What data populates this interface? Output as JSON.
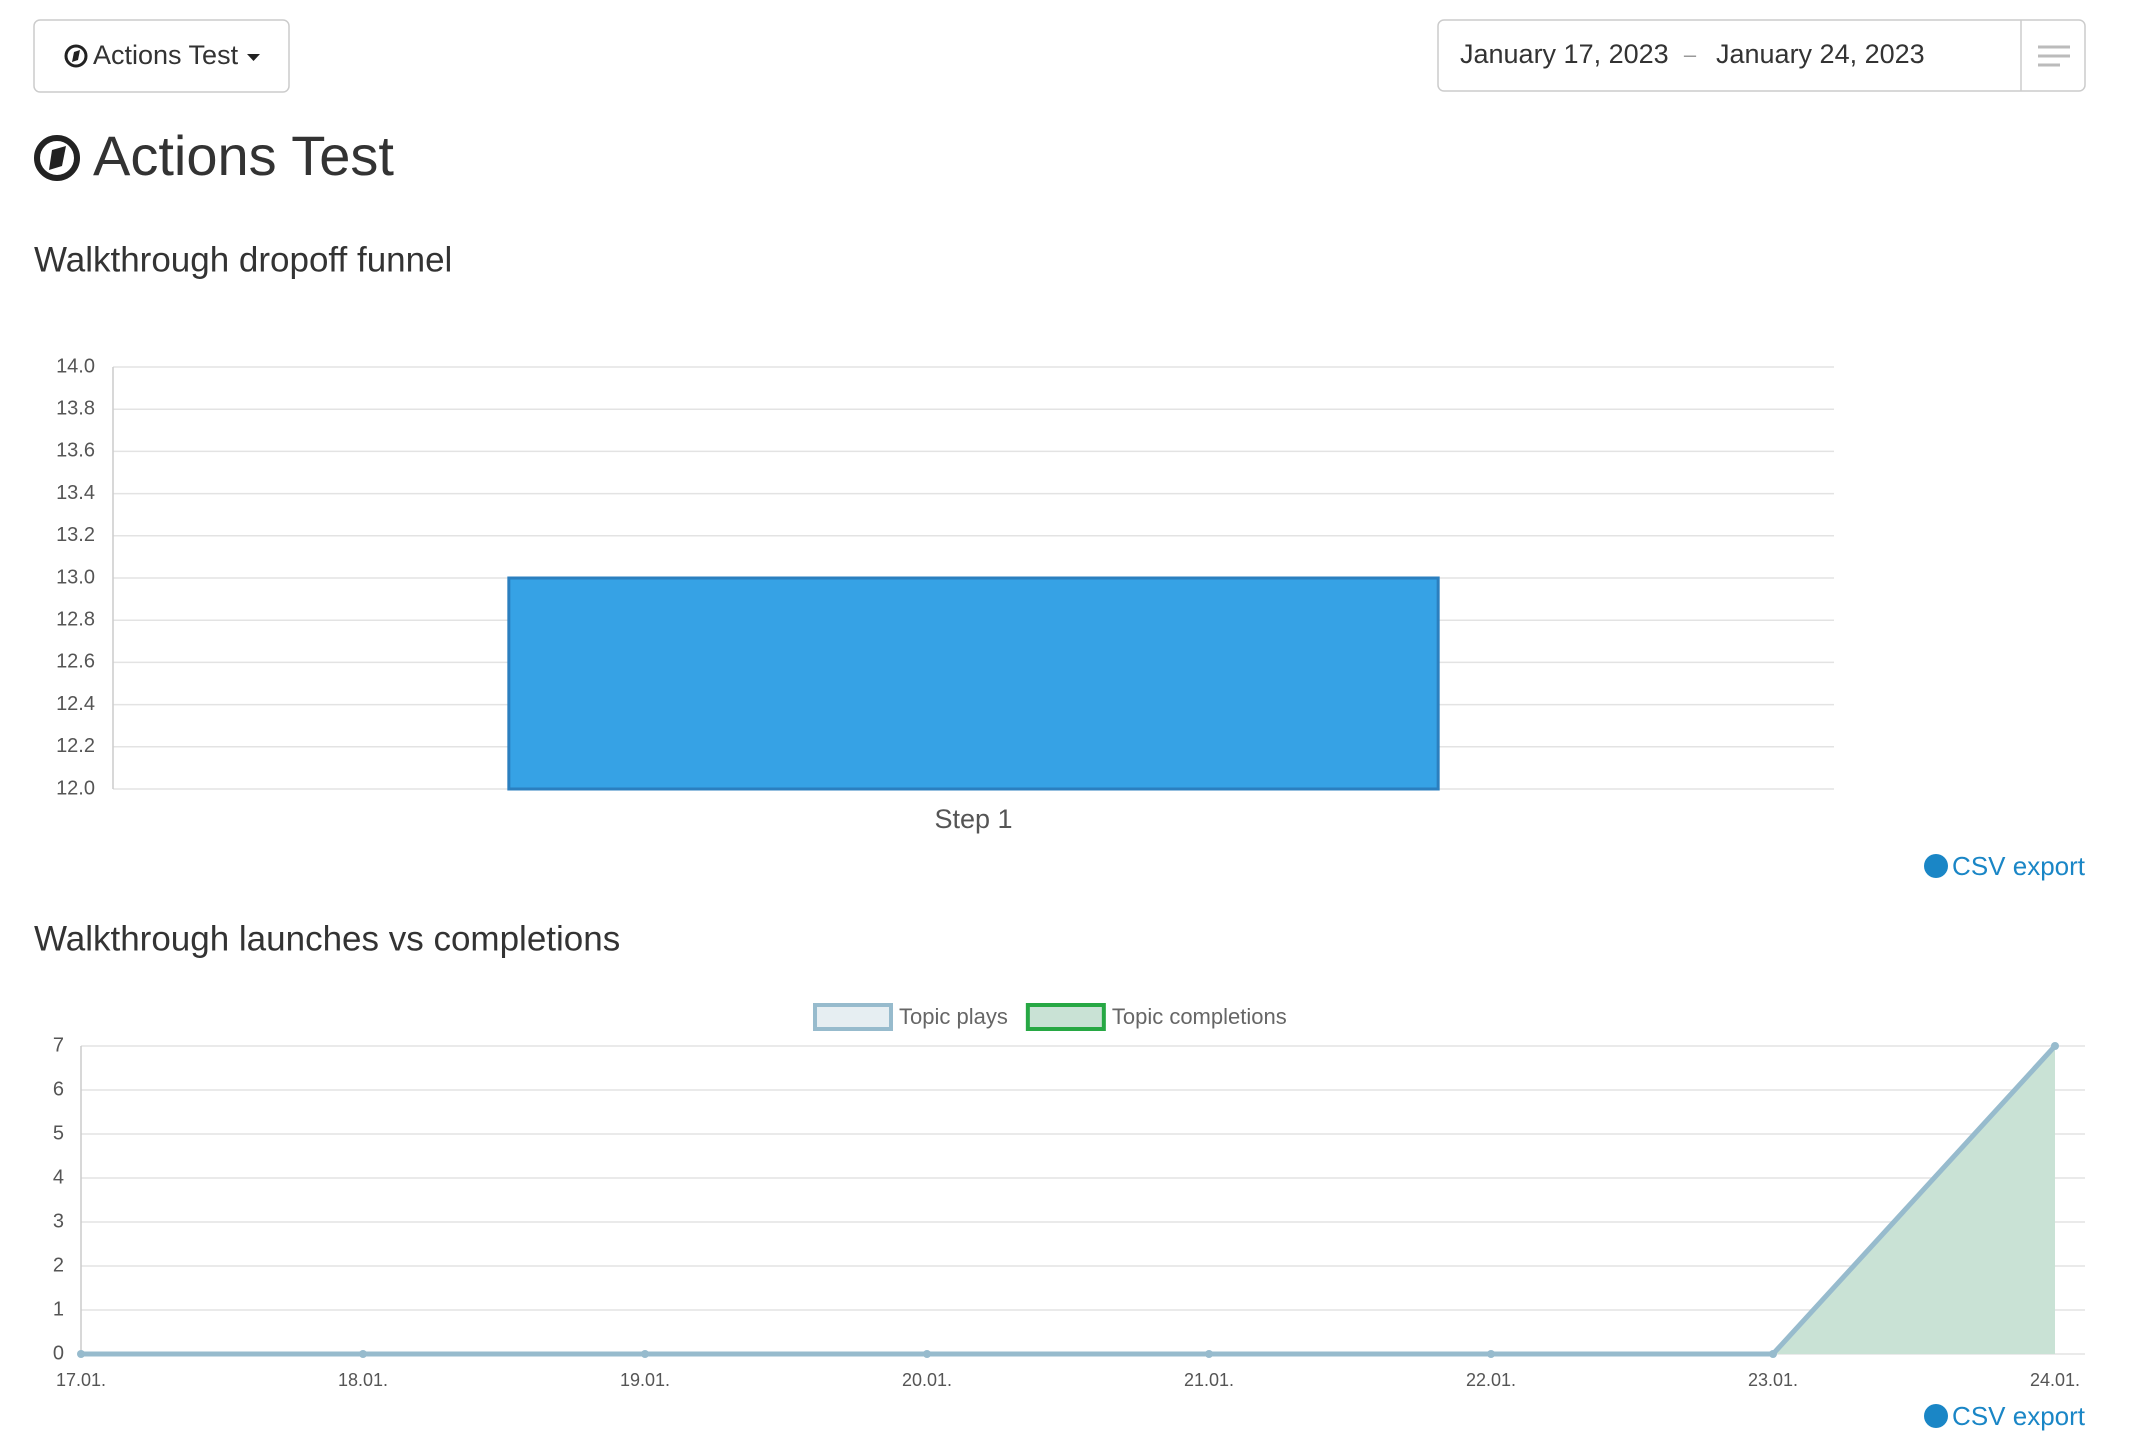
{
  "header": {
    "dropdown_label": "Actions Test",
    "date_start": "January 17, 2023",
    "date_separator": "–",
    "date_end": "January 24, 2023",
    "title": "Actions Test"
  },
  "chart_data": [
    {
      "type": "bar",
      "title": "Walkthrough dropoff funnel",
      "categories": [
        "Step 1"
      ],
      "values": [
        13
      ],
      "color": "#36a2e5",
      "border_color": "#2b7fbf",
      "ylim": [
        12,
        14
      ],
      "yticks": [
        {
          "value": 12,
          "label": "12.0"
        },
        12.2,
        12.4,
        12.6,
        12.8,
        {
          "value": 13,
          "label": "13.0"
        },
        13.2,
        13.4,
        13.6,
        13.8,
        {
          "value": 14,
          "label": "14.0"
        }
      ],
      "grid": true,
      "export_label": "CSV export"
    },
    {
      "type": "line",
      "title": "Walkthrough launches vs completions",
      "categories": [
        "17.01.",
        "18.01.",
        "19.01.",
        "20.01.",
        "21.01.",
        "22.01.",
        "23.01.",
        "24.01."
      ],
      "series": [
        {
          "name": "Topic plays",
          "color": "#97bbcd",
          "fill": "#e6eef2",
          "values": [
            0,
            0,
            0,
            0,
            0,
            0,
            0,
            7
          ]
        },
        {
          "name": "Topic completions",
          "color": "#27a844",
          "fill": "#c9e2d5",
          "values": [
            0,
            0,
            0,
            0,
            0,
            0,
            0,
            7
          ]
        }
      ],
      "ylim": [
        0,
        7
      ],
      "yticks": [
        0,
        1,
        2,
        3,
        4,
        5,
        6,
        7
      ],
      "grid": true,
      "legend": "top",
      "export_label": "CSV export"
    }
  ]
}
